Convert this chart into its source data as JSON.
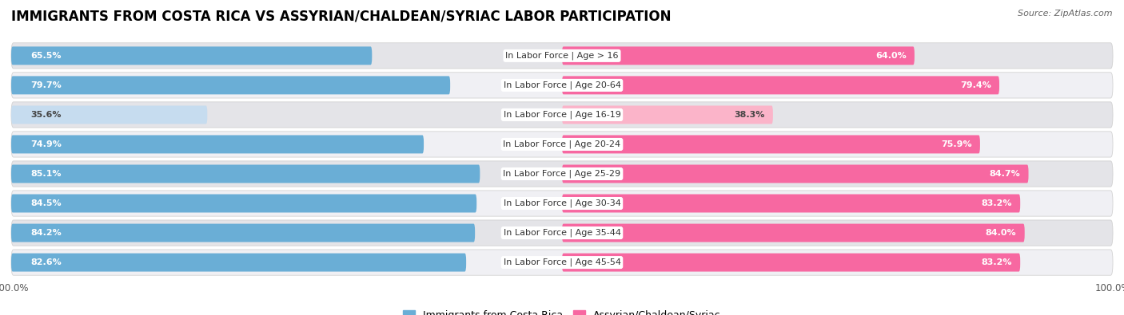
{
  "title": "IMMIGRANTS FROM COSTA RICA VS ASSYRIAN/CHALDEAN/SYRIAC LABOR PARTICIPATION",
  "source": "Source: ZipAtlas.com",
  "categories": [
    "In Labor Force | Age > 16",
    "In Labor Force | Age 20-64",
    "In Labor Force | Age 16-19",
    "In Labor Force | Age 20-24",
    "In Labor Force | Age 25-29",
    "In Labor Force | Age 30-34",
    "In Labor Force | Age 35-44",
    "In Labor Force | Age 45-54"
  ],
  "costa_rica_values": [
    65.5,
    79.7,
    35.6,
    74.9,
    85.1,
    84.5,
    84.2,
    82.6
  ],
  "assyrian_values": [
    64.0,
    79.4,
    38.3,
    75.9,
    84.7,
    83.2,
    84.0,
    83.2
  ],
  "costa_rica_color": "#6aaed6",
  "costa_rica_color_light": "#c6dcef",
  "assyrian_color": "#f768a1",
  "assyrian_color_light": "#fbb4c9",
  "row_bg_color_dark": "#e4e4e8",
  "row_bg_color_light": "#f0f0f4",
  "max_value": 100.0,
  "legend_label_costa_rica": "Immigrants from Costa Rica",
  "legend_label_assyrian": "Assyrian/Chaldean/Syriac",
  "title_fontsize": 12,
  "label_fontsize": 8,
  "value_fontsize": 8,
  "bar_height": 0.62
}
